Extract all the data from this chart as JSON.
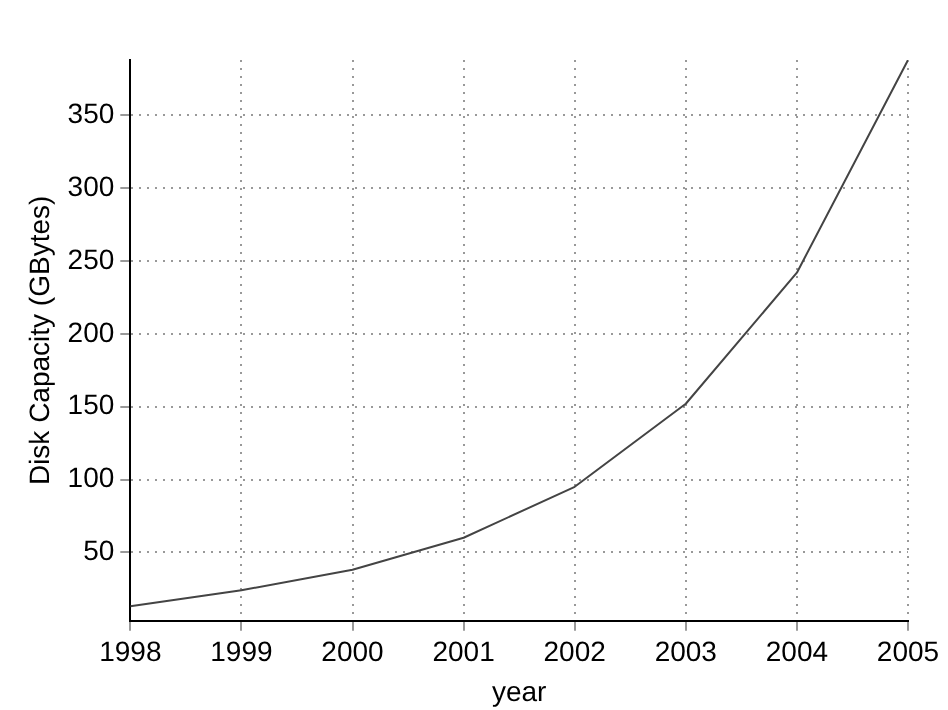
{
  "chart_data": {
    "type": "line",
    "xlabel": "year",
    "ylabel": "Disk Capacity (GBytes)",
    "x": [
      1998,
      1999,
      2000,
      2001,
      2002,
      2003,
      2004,
      2005
    ],
    "series": [
      {
        "color": "#444444",
        "values": [
          13,
          24,
          38,
          60,
          95,
          152,
          242,
          388
        ]
      }
    ],
    "xlim": [
      1998,
      2005
    ],
    "xticks": [
      1998,
      1999,
      2000,
      2001,
      2002,
      2003,
      2004,
      2005
    ],
    "ylim": [
      3,
      388
    ],
    "yticks": [
      50,
      100,
      150,
      200,
      250,
      300,
      350
    ],
    "grid": true,
    "legend": false,
    "marker": "none",
    "line_style": "solid"
  }
}
